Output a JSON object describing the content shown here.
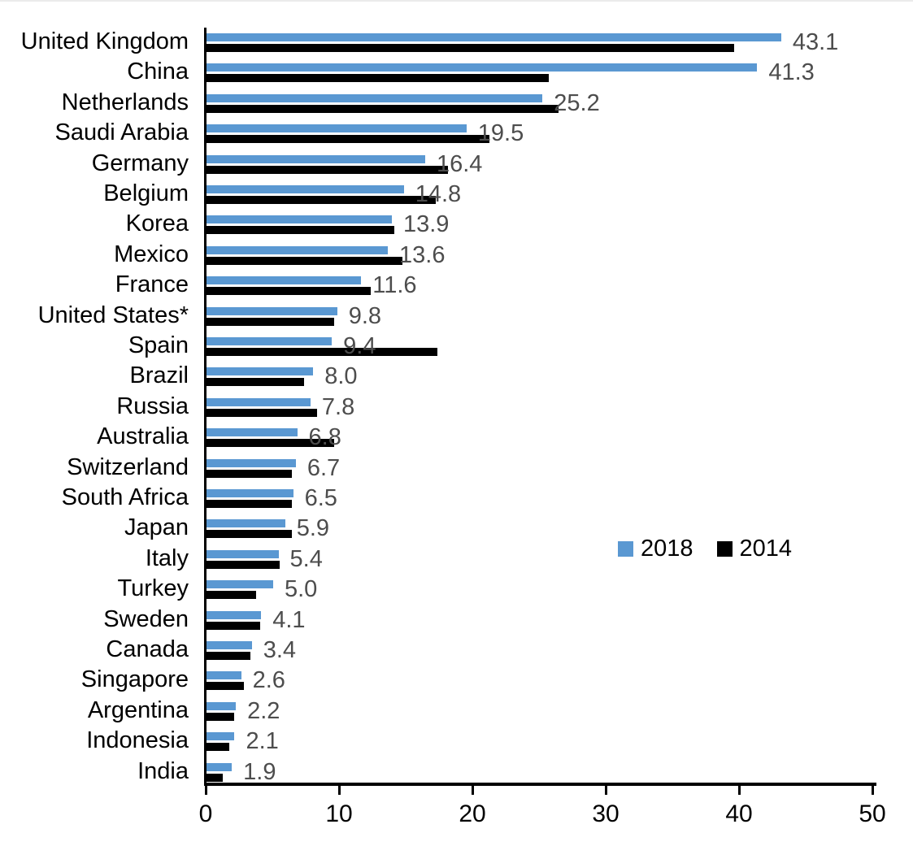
{
  "chart_data": {
    "type": "bar",
    "orientation": "horizontal",
    "title": "",
    "xlabel": "",
    "ylabel": "",
    "xlim": [
      0,
      50
    ],
    "x_ticks": [
      0,
      10,
      20,
      30,
      40,
      50
    ],
    "x_tick_labels": [
      "0",
      "10",
      "20",
      "30",
      "40",
      "50"
    ],
    "grid": false,
    "categories": [
      "United Kingdom",
      "China",
      "Netherlands",
      "Saudi Arabia",
      "Germany",
      "Belgium",
      "Korea",
      "Mexico",
      "France",
      "United States*",
      "Spain",
      "Brazil",
      "Russia",
      "Australia",
      "Switzerland",
      "South Africa",
      "Japan",
      "Italy",
      "Turkey",
      "Sweden",
      "Canada",
      "Singapore",
      "Argentina",
      "Indonesia",
      "India"
    ],
    "series": [
      {
        "name": "2018",
        "color": "#5a98d2",
        "values": [
          43.1,
          41.3,
          25.2,
          19.5,
          16.4,
          14.8,
          13.9,
          13.6,
          11.6,
          9.8,
          9.4,
          8.0,
          7.8,
          6.8,
          6.7,
          6.5,
          5.9,
          5.4,
          5.0,
          4.1,
          3.4,
          2.6,
          2.2,
          2.1,
          1.9
        ]
      },
      {
        "name": "2014",
        "color": "#000000",
        "values": [
          39.6,
          25.7,
          26.4,
          21.2,
          18.1,
          17.2,
          14.1,
          14.7,
          12.3,
          9.6,
          17.3,
          7.3,
          8.3,
          9.6,
          6.4,
          6.4,
          6.4,
          5.5,
          3.7,
          4.0,
          3.3,
          2.8,
          2.1,
          1.7,
          1.2
        ]
      }
    ],
    "data_labels": {
      "series": "2018",
      "color": "#4d4d4d",
      "values": [
        "43.1",
        "41.3",
        "25.2",
        "19.5",
        "16.4",
        "14.8",
        "13.9",
        "13.6",
        "11.6",
        "9.8",
        "9.4",
        "8.0",
        "7.8",
        "6.8",
        "6.7",
        "6.5",
        "5.9",
        "5.4",
        "5.0",
        "4.1",
        "3.4",
        "2.6",
        "2.2",
        "2.1",
        "1.9"
      ]
    },
    "legend": {
      "position": "middle-right",
      "entries": [
        "2018",
        "2014"
      ]
    }
  }
}
